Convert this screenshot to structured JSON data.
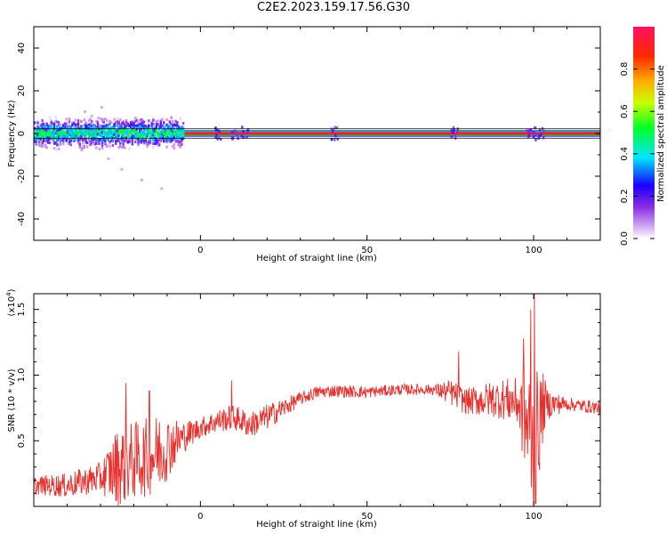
{
  "title": "C2E2.2023.159.17.56.G30",
  "colors": {
    "snr_line": "#e8302e",
    "axis": "#000000"
  },
  "chart_data": [
    {
      "type": "heatmap",
      "xlabel": "Height of straight line (km)",
      "ylabel": "Frequency (Hz)",
      "xlim": [
        -50,
        120
      ],
      "ylim": [
        -50,
        50
      ],
      "xticks": [
        0,
        50,
        100
      ],
      "xtick_labels": [
        "0",
        "50",
        "100"
      ],
      "yticks": [
        -40,
        -20,
        0,
        20,
        40
      ],
      "ytick_labels": [
        "-40",
        "-20",
        "0",
        "20",
        "40"
      ],
      "colorbar": {
        "label": "Normalized spectral amplitude",
        "range": [
          0,
          1
        ],
        "ticks": [
          0.0,
          0.2,
          0.4,
          0.6,
          0.8
        ],
        "tick_labels": [
          "0.0",
          "0.2",
          "0.4",
          "0.6",
          "0.8"
        ]
      },
      "band_center_hz": 0,
      "band_halfwidth_hz": 1.5,
      "noisy_region_x": [
        -50,
        -5
      ],
      "noisy_spread_hz": 8,
      "steady_region_x": [
        -5,
        120
      ],
      "bursts_x": [
        5,
        10,
        13,
        40,
        76,
        98,
        100,
        102
      ]
    },
    {
      "type": "line",
      "xlabel": "Height of straight line (km)",
      "ylabel": "SNR (10 * v/v)",
      "exponent_label": "(x10",
      "exponent_power": "4",
      "exponent_close": ")",
      "xlim": [
        -50,
        120
      ],
      "ylim": [
        0,
        1.62
      ],
      "xticks": [
        0,
        50,
        100
      ],
      "xtick_labels": [
        "0",
        "50",
        "100"
      ],
      "yticks": [
        0.5,
        1.0,
        1.5
      ],
      "ytick_labels": [
        "0.5",
        "1.0",
        "1.5"
      ],
      "trend_x": [
        -50,
        -40,
        -30,
        -25,
        -20,
        -15,
        -10,
        -5,
        0,
        5,
        10,
        15,
        20,
        25,
        30,
        35,
        40,
        50,
        60,
        70,
        76,
        78,
        80,
        90,
        95,
        99,
        100,
        101,
        103,
        110,
        120
      ],
      "trend_y": [
        0.16,
        0.16,
        0.22,
        0.3,
        0.35,
        0.38,
        0.45,
        0.53,
        0.6,
        0.65,
        0.68,
        0.62,
        0.68,
        0.75,
        0.82,
        0.87,
        0.88,
        0.87,
        0.89,
        0.89,
        0.86,
        0.82,
        0.8,
        0.82,
        0.8,
        0.55,
        0.4,
        0.55,
        0.78,
        0.78,
        0.75
      ],
      "noise_amp_x": [
        -50,
        -30,
        -25,
        -12,
        -5,
        0,
        10,
        20,
        30,
        70,
        75,
        80,
        95,
        100,
        104,
        110,
        120
      ],
      "noise_amp_y": [
        0.07,
        0.12,
        0.3,
        0.3,
        0.12,
        0.08,
        0.1,
        0.1,
        0.05,
        0.04,
        0.1,
        0.1,
        0.18,
        0.6,
        0.12,
        0.05,
        0.05
      ],
      "peaks": [
        {
          "x": 100.2,
          "y": 1.62
        },
        {
          "x": 99.1,
          "y": 1.5
        },
        {
          "x": 97.0,
          "y": 1.28
        },
        {
          "x": 77.5,
          "y": 1.18
        },
        {
          "x": 9.3,
          "y": 0.96
        },
        {
          "x": -22.3,
          "y": 0.94
        },
        {
          "x": -15.3,
          "y": 0.88
        },
        {
          "x": 100.6,
          "y": 0.02
        }
      ]
    }
  ]
}
